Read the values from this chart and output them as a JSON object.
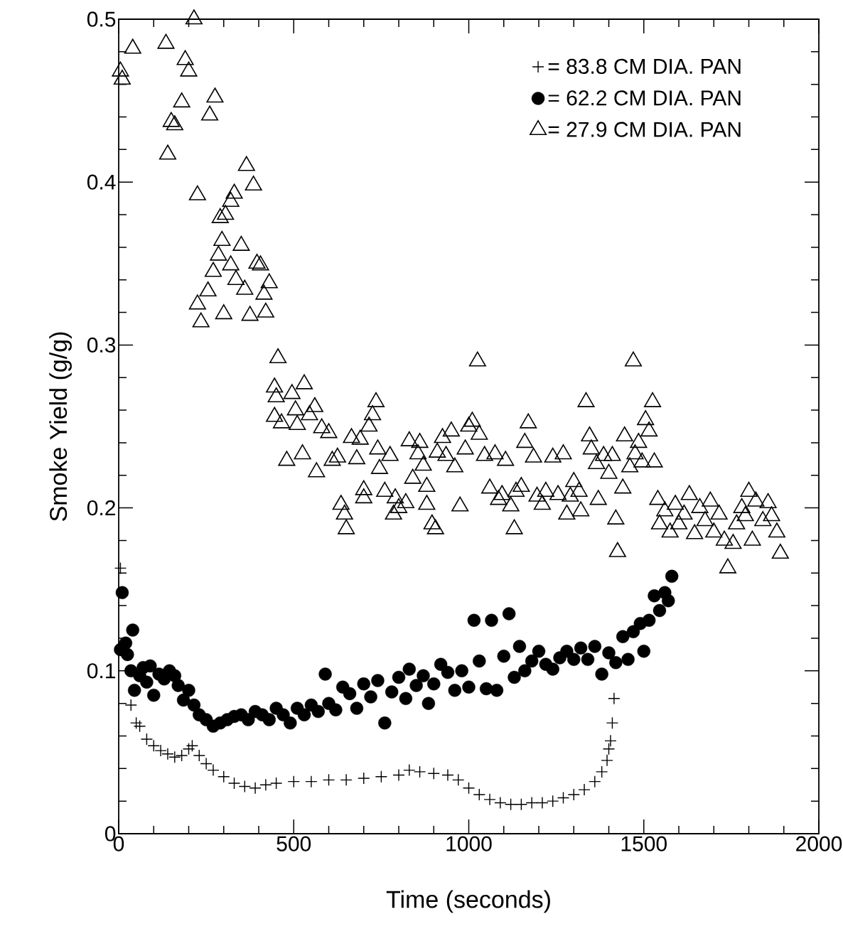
{
  "chart_data": {
    "type": "scatter",
    "xlabel": "Time (seconds)",
    "ylabel": "Smoke Yield (g/g)",
    "xlim": [
      0,
      2000
    ],
    "ylim": [
      0,
      0.5
    ],
    "xticks": [
      0,
      500,
      1000,
      1500,
      2000
    ],
    "yticks": [
      0,
      0.1,
      0.2,
      0.3,
      0.4,
      0.5
    ],
    "legend": "top right",
    "grid": false,
    "series": [
      {
        "name": "= 83.8 CM DIA. PAN",
        "color": "#000000",
        "marker": "cross",
        "x": [
          5,
          10,
          20,
          35,
          50,
          60,
          80,
          100,
          120,
          140,
          160,
          180,
          200,
          210,
          230,
          250,
          270,
          300,
          330,
          360,
          390,
          420,
          450,
          500,
          550,
          600,
          650,
          700,
          750,
          800,
          830,
          860,
          900,
          940,
          970,
          1000,
          1030,
          1060,
          1090,
          1120,
          1150,
          1180,
          1210,
          1240,
          1270,
          1300,
          1330,
          1360,
          1380,
          1395,
          1400,
          1405,
          1410,
          1415
        ],
        "values": [
          0.163,
          null,
          null,
          0.079,
          0.068,
          0.066,
          0.058,
          0.054,
          0.051,
          0.049,
          0.047,
          0.048,
          0.052,
          0.054,
          0.048,
          0.043,
          0.039,
          0.035,
          0.031,
          0.029,
          0.028,
          0.03,
          0.031,
          0.032,
          0.032,
          0.033,
          0.033,
          0.034,
          0.035,
          0.036,
          0.039,
          0.038,
          0.037,
          0.036,
          0.033,
          0.028,
          0.024,
          0.021,
          0.019,
          0.018,
          0.018,
          0.019,
          0.019,
          0.02,
          0.022,
          0.024,
          0.027,
          0.032,
          0.038,
          0.045,
          0.052,
          0.057,
          0.068,
          0.083
        ]
      },
      {
        "name": "= 62.2 CM DIA. PAN",
        "color": "#000000",
        "marker": "circle",
        "x": [
          5,
          10,
          20,
          25,
          35,
          40,
          45,
          60,
          70,
          80,
          90,
          100,
          115,
          130,
          145,
          160,
          170,
          185,
          200,
          215,
          230,
          250,
          270,
          290,
          310,
          330,
          350,
          370,
          390,
          410,
          430,
          450,
          470,
          490,
          510,
          530,
          550,
          570,
          590,
          600,
          620,
          640,
          660,
          680,
          700,
          720,
          740,
          760,
          780,
          800,
          820,
          830,
          850,
          870,
          885,
          900,
          920,
          940,
          960,
          980,
          1000,
          1015,
          1030,
          1050,
          1065,
          1080,
          1100,
          1115,
          1130,
          1145,
          1160,
          1180,
          1200,
          1220,
          1240,
          1260,
          1280,
          1300,
          1320,
          1340,
          1360,
          1380,
          1400,
          1420,
          1440,
          1455,
          1470,
          1490,
          1500,
          1515,
          1530,
          1545,
          1560,
          1570,
          1580
        ],
        "values": [
          0.113,
          0.148,
          0.117,
          0.11,
          0.1,
          0.125,
          0.088,
          0.097,
          0.102,
          0.093,
          0.103,
          0.085,
          0.098,
          0.095,
          0.1,
          0.097,
          0.091,
          0.082,
          0.088,
          0.079,
          0.073,
          0.07,
          0.066,
          0.068,
          0.07,
          0.072,
          0.073,
          0.07,
          0.075,
          0.073,
          0.07,
          0.077,
          0.073,
          0.068,
          0.077,
          0.073,
          0.079,
          0.075,
          0.098,
          0.08,
          0.076,
          0.09,
          0.086,
          0.077,
          0.092,
          0.084,
          0.094,
          0.068,
          0.087,
          0.096,
          0.083,
          0.101,
          0.091,
          0.097,
          0.08,
          0.092,
          0.104,
          0.099,
          0.088,
          0.1,
          0.09,
          0.131,
          0.106,
          0.089,
          0.131,
          0.088,
          0.109,
          0.135,
          0.096,
          0.115,
          0.1,
          0.106,
          0.112,
          0.104,
          0.101,
          0.108,
          0.112,
          0.107,
          0.114,
          0.107,
          0.115,
          0.098,
          0.111,
          0.105,
          0.121,
          0.107,
          0.124,
          0.129,
          0.112,
          0.131,
          0.146,
          0.137,
          0.148,
          0.143,
          0.158
        ]
      },
      {
        "name": "= 27.9 CM DIA. PAN",
        "color": "#000000",
        "marker": "triangle",
        "x": [
          5,
          10,
          40,
          135,
          215,
          150,
          140,
          160,
          180,
          190,
          200,
          260,
          275,
          225,
          225,
          235,
          255,
          270,
          285,
          295,
          290,
          305,
          320,
          330,
          300,
          320,
          335,
          350,
          360,
          365,
          385,
          375,
          395,
          405,
          415,
          420,
          430,
          455,
          445,
          450,
          445,
          465,
          480,
          495,
          505,
          510,
          525,
          530,
          545,
          560,
          565,
          580,
          600,
          610,
          625,
          635,
          645,
          650,
          665,
          680,
          690,
          700,
          700,
          715,
          725,
          735,
          740,
          745,
          760,
          775,
          785,
          790,
          800,
          820,
          830,
          840,
          855,
          860,
          870,
          880,
          880,
          895,
          905,
          910,
          925,
          935,
          950,
          960,
          975,
          990,
          1000,
          1010,
          1025,
          1030,
          1045,
          1060,
          1075,
          1085,
          1095,
          1105,
          1120,
          1130,
          1135,
          1150,
          1160,
          1170,
          1185,
          1195,
          1210,
          1220,
          1240,
          1255,
          1270,
          1280,
          1290,
          1300,
          1315,
          1320,
          1335,
          1345,
          1350,
          1365,
          1370,
          1385,
          1400,
          1410,
          1420,
          1425,
          1440,
          1445,
          1460,
          1470,
          1475,
          1485,
          1495,
          1505,
          1515,
          1525,
          1530,
          1540,
          1545,
          1560,
          1575,
          1590,
          1600,
          1615,
          1630,
          1645,
          1660,
          1675,
          1690,
          1700,
          1715,
          1730,
          1740,
          1755,
          1765,
          1780,
          1790,
          1800,
          1810,
          1820,
          1840,
          1855,
          1865,
          1880,
          1890
        ],
        "values": [
          0.468,
          0.463,
          0.482,
          0.485,
          0.5,
          0.437,
          0.417,
          0.435,
          0.449,
          0.475,
          0.468,
          0.441,
          0.452,
          0.392,
          0.325,
          0.314,
          0.333,
          0.345,
          0.355,
          0.364,
          0.378,
          0.38,
          0.388,
          0.393,
          0.319,
          0.349,
          0.34,
          0.361,
          0.334,
          0.41,
          0.398,
          0.318,
          0.35,
          0.349,
          0.331,
          0.32,
          0.338,
          0.292,
          0.274,
          0.268,
          0.256,
          0.252,
          0.229,
          0.27,
          0.26,
          0.251,
          0.233,
          0.276,
          0.257,
          0.262,
          0.222,
          0.249,
          0.246,
          0.229,
          0.231,
          0.202,
          0.196,
          0.187,
          0.243,
          0.23,
          0.242,
          0.211,
          0.206,
          0.25,
          0.257,
          0.265,
          0.236,
          0.224,
          0.21,
          0.232,
          0.196,
          0.206,
          0.2,
          0.203,
          0.241,
          0.218,
          0.233,
          0.24,
          0.226,
          0.213,
          0.202,
          0.19,
          0.187,
          0.234,
          0.243,
          0.232,
          0.247,
          0.225,
          0.201,
          0.236,
          0.25,
          0.253,
          0.29,
          0.245,
          0.232,
          0.212,
          0.233,
          0.205,
          0.208,
          0.229,
          0.201,
          0.187,
          0.21,
          0.213,
          0.24,
          0.252,
          0.231,
          0.207,
          0.202,
          0.21,
          0.231,
          0.208,
          0.233,
          0.196,
          0.207,
          0.216,
          0.21,
          0.198,
          0.265,
          0.244,
          0.236,
          0.227,
          0.205,
          0.232,
          0.221,
          0.232,
          0.193,
          0.173,
          0.212,
          0.244,
          0.225,
          0.29,
          0.233,
          0.24,
          0.228,
          0.254,
          0.247,
          0.265,
          0.228,
          0.205,
          0.19,
          0.198,
          0.185,
          0.202,
          0.19,
          0.196,
          0.208,
          0.184,
          0.2,
          0.192,
          0.204,
          0.185,
          0.196,
          0.18,
          0.163,
          0.178,
          0.19,
          0.2,
          0.195,
          0.21,
          0.18,
          0.204,
          0.192,
          0.203,
          0.195,
          0.185,
          0.172
        ]
      }
    ]
  }
}
